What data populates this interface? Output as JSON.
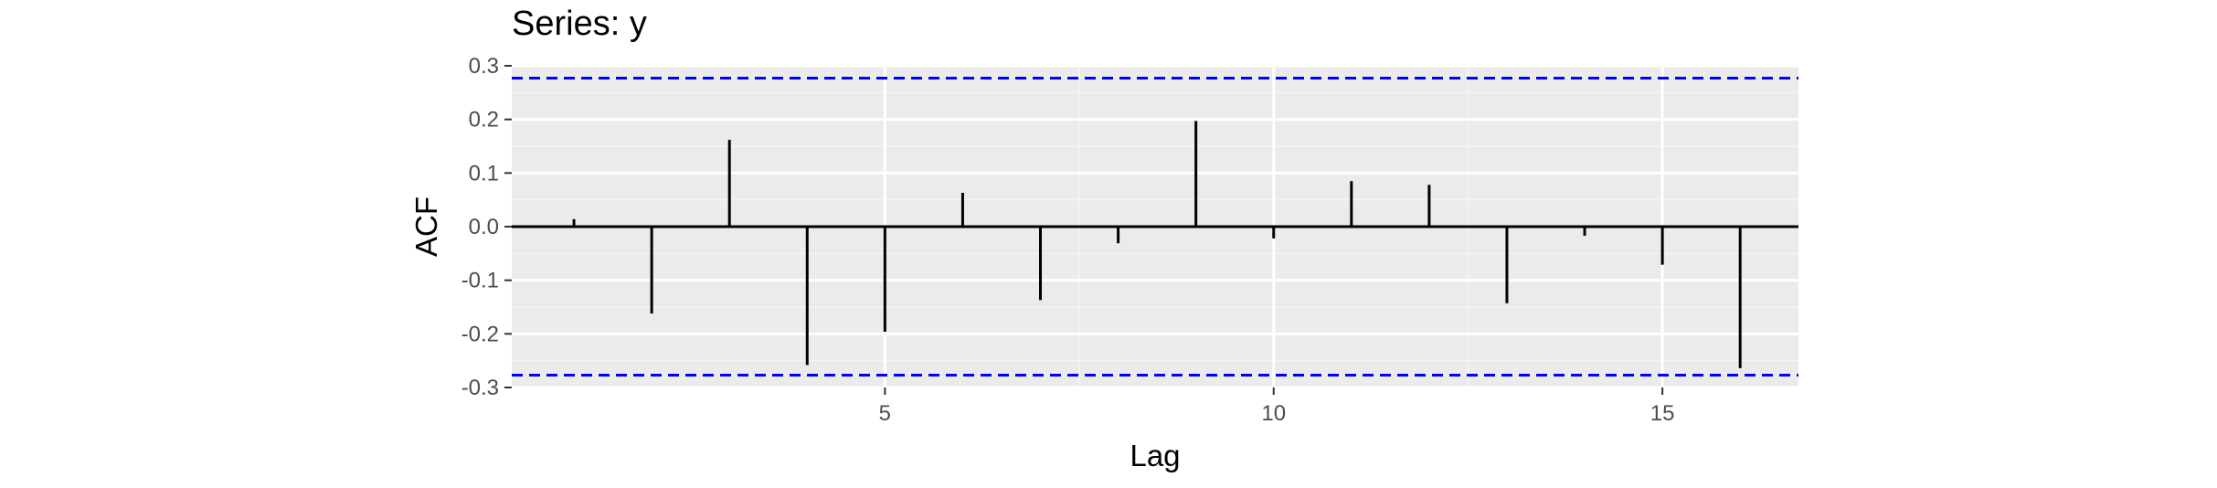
{
  "chart_data": {
    "type": "bar",
    "title": "Series: y",
    "xlabel": "Lag",
    "ylabel": "ACF",
    "xlim": [
      0.2,
      16.75
    ],
    "ylim": [
      -0.3,
      0.3
    ],
    "x_ticks": [
      {
        "value": 5,
        "label": "5"
      },
      {
        "value": 10,
        "label": "10"
      },
      {
        "value": 15,
        "label": "15"
      }
    ],
    "y_ticks": [
      {
        "value": 0.3,
        "label": "0.3"
      },
      {
        "value": 0.2,
        "label": "0.2"
      },
      {
        "value": 0.1,
        "label": "0.1"
      },
      {
        "value": 0.0,
        "label": "0.0"
      },
      {
        "value": -0.1,
        "label": "-0.1"
      },
      {
        "value": -0.2,
        "label": "-0.2"
      },
      {
        "value": -0.3,
        "label": "-0.3"
      }
    ],
    "x_minor_ticks": [
      7.5,
      12.5
    ],
    "y_minor_ticks": [
      0.25,
      0.15,
      0.05,
      -0.05,
      -0.15,
      -0.25
    ],
    "lags": [
      1,
      2,
      3,
      4,
      5,
      6,
      7,
      8,
      9,
      10,
      11,
      12,
      13,
      14,
      15,
      16
    ],
    "values": [
      0.014,
      -0.162,
      0.162,
      -0.258,
      -0.196,
      0.063,
      -0.137,
      -0.031,
      0.197,
      -0.022,
      0.085,
      0.078,
      -0.143,
      -0.017,
      -0.071,
      -0.264
    ],
    "confidence_bounds": [
      0.277,
      -0.277
    ],
    "grid": true,
    "colors": {
      "panel_background": "#ebebeb",
      "grid_major": "#ffffff",
      "grid_minor": "#f5f5f5",
      "bars": "#000000",
      "zero_line": "#000000",
      "confidence_line": "#0000ff"
    }
  }
}
